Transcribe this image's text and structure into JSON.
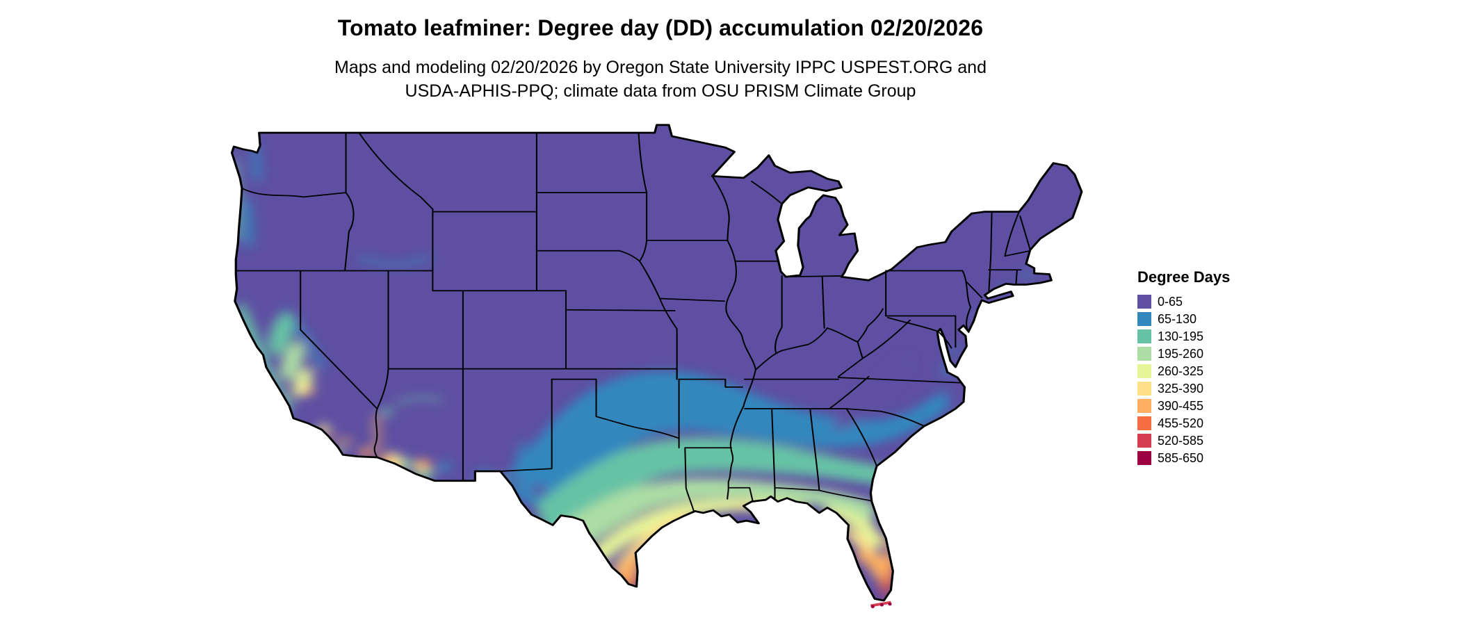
{
  "title": "Tomato leafminer: Degree day (DD) accumulation 02/20/2026",
  "subtitle_line1": "Maps and modeling 02/20/2026 by Oregon State University IPPC USPEST.ORG and",
  "subtitle_line2": "USDA-APHIS-PPQ; climate data from OSU PRISM Climate Group",
  "legend": {
    "title": "Degree Days",
    "items": [
      {
        "label": "0-65",
        "color": "#5e4fa2"
      },
      {
        "label": "65-130",
        "color": "#3288bd"
      },
      {
        "label": "130-195",
        "color": "#66c2a5"
      },
      {
        "label": "195-260",
        "color": "#abdda4"
      },
      {
        "label": "260-325",
        "color": "#e6f598"
      },
      {
        "label": "325-390",
        "color": "#fee08b"
      },
      {
        "label": "390-455",
        "color": "#fdae61"
      },
      {
        "label": "455-520",
        "color": "#f46d43"
      },
      {
        "label": "520-585",
        "color": "#d53e4f"
      },
      {
        "label": "585-650",
        "color": "#9e0142"
      }
    ]
  }
}
